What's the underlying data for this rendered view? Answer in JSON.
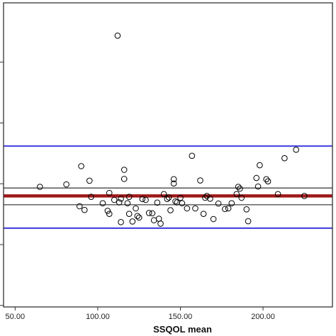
{
  "chart_data": {
    "type": "scatter",
    "title": "",
    "xlabel": "SSQOL mean",
    "ylabel": "",
    "xlim": [
      43,
      242
    ],
    "ylim": [
      -40.5,
      59.5
    ],
    "x_ticks": [
      50,
      100,
      150,
      200
    ],
    "x_tick_labels": [
      "50.00",
      "100.00",
      "150.00",
      "200.00"
    ],
    "y_ticks": [
      -40,
      -20,
      0,
      20,
      40
    ],
    "y_tick_labels": [
      "",
      "",
      "",
      "",
      ""
    ],
    "grid": false,
    "legend": "none",
    "colors": {
      "point": "#000000",
      "mean_line": "#a01818",
      "limit_line": "#4a4ae0",
      "ci_line": "#555555",
      "frame": "#333333"
    },
    "reference_lines": [
      {
        "role": "upper-limit",
        "y": 12.4,
        "color": "#4a4ae0"
      },
      {
        "role": "mean-upper-ci",
        "y": -1.4,
        "color": "#555555"
      },
      {
        "role": "mean",
        "y": -4.0,
        "color": "#a01818"
      },
      {
        "role": "mean-lower-ci",
        "y": -6.9,
        "color": "#555555"
      },
      {
        "role": "lower-limit",
        "y": -14.6,
        "color": "#4a4ae0"
      }
    ],
    "points": [
      {
        "x": 112,
        "y": 48.7
      },
      {
        "x": 65,
        "y": -1.0
      },
      {
        "x": 81,
        "y": -0.2
      },
      {
        "x": 90,
        "y": 5.8
      },
      {
        "x": 95,
        "y": 1.0
      },
      {
        "x": 89,
        "y": -7.4
      },
      {
        "x": 92,
        "y": -8.6
      },
      {
        "x": 96,
        "y": -4.3
      },
      {
        "x": 103,
        "y": -6.4
      },
      {
        "x": 106,
        "y": -8.9
      },
      {
        "x": 107,
        "y": -9.9
      },
      {
        "x": 107,
        "y": -3.0
      },
      {
        "x": 110,
        "y": -5.3
      },
      {
        "x": 113,
        "y": -6.1
      },
      {
        "x": 114,
        "y": -4.9
      },
      {
        "x": 114,
        "y": -12.6
      },
      {
        "x": 116,
        "y": 1.6
      },
      {
        "x": 116,
        "y": 4.6
      },
      {
        "x": 118,
        "y": -6.4
      },
      {
        "x": 119,
        "y": -4.3
      },
      {
        "x": 119,
        "y": -9.9
      },
      {
        "x": 121,
        "y": -12.4
      },
      {
        "x": 123,
        "y": -8.1
      },
      {
        "x": 124,
        "y": -10.6
      },
      {
        "x": 125,
        "y": -11.1
      },
      {
        "x": 127,
        "y": -5.0
      },
      {
        "x": 129,
        "y": -5.3
      },
      {
        "x": 131,
        "y": -9.6
      },
      {
        "x": 133,
        "y": -9.7
      },
      {
        "x": 134,
        "y": -12.0
      },
      {
        "x": 136,
        "y": -6.2
      },
      {
        "x": 137,
        "y": -11.5
      },
      {
        "x": 138,
        "y": -13.1
      },
      {
        "x": 140,
        "y": -3.4
      },
      {
        "x": 142,
        "y": -5.0
      },
      {
        "x": 143,
        "y": -4.5
      },
      {
        "x": 144,
        "y": -8.7
      },
      {
        "x": 146,
        "y": 0.1
      },
      {
        "x": 146,
        "y": 1.5
      },
      {
        "x": 147,
        "y": -5.8
      },
      {
        "x": 148,
        "y": -6.1
      },
      {
        "x": 150,
        "y": -4.6
      },
      {
        "x": 151,
        "y": -6.4
      },
      {
        "x": 154,
        "y": -8.1
      },
      {
        "x": 157,
        "y": 9.2
      },
      {
        "x": 159,
        "y": -8.1
      },
      {
        "x": 162,
        "y": 1.1
      },
      {
        "x": 164,
        "y": -9.9
      },
      {
        "x": 165,
        "y": -4.6
      },
      {
        "x": 166,
        "y": -4.0
      },
      {
        "x": 168,
        "y": -4.9
      },
      {
        "x": 170,
        "y": -11.6
      },
      {
        "x": 173,
        "y": -6.5
      },
      {
        "x": 177,
        "y": -8.3
      },
      {
        "x": 179,
        "y": -8.1
      },
      {
        "x": 181,
        "y": -6.4
      },
      {
        "x": 184,
        "y": -3.4
      },
      {
        "x": 185,
        "y": -1.0
      },
      {
        "x": 186,
        "y": -1.6
      },
      {
        "x": 187,
        "y": -4.6
      },
      {
        "x": 190,
        "y": -8.4
      },
      {
        "x": 191,
        "y": -12.3
      },
      {
        "x": 196,
        "y": 1.9
      },
      {
        "x": 197,
        "y": -0.9
      },
      {
        "x": 198,
        "y": 6.1
      },
      {
        "x": 202,
        "y": 1.5
      },
      {
        "x": 203,
        "y": 0.8
      },
      {
        "x": 209,
        "y": -3.4
      },
      {
        "x": 213,
        "y": 8.4
      },
      {
        "x": 220,
        "y": 11.2
      },
      {
        "x": 225,
        "y": -4.0
      }
    ]
  }
}
